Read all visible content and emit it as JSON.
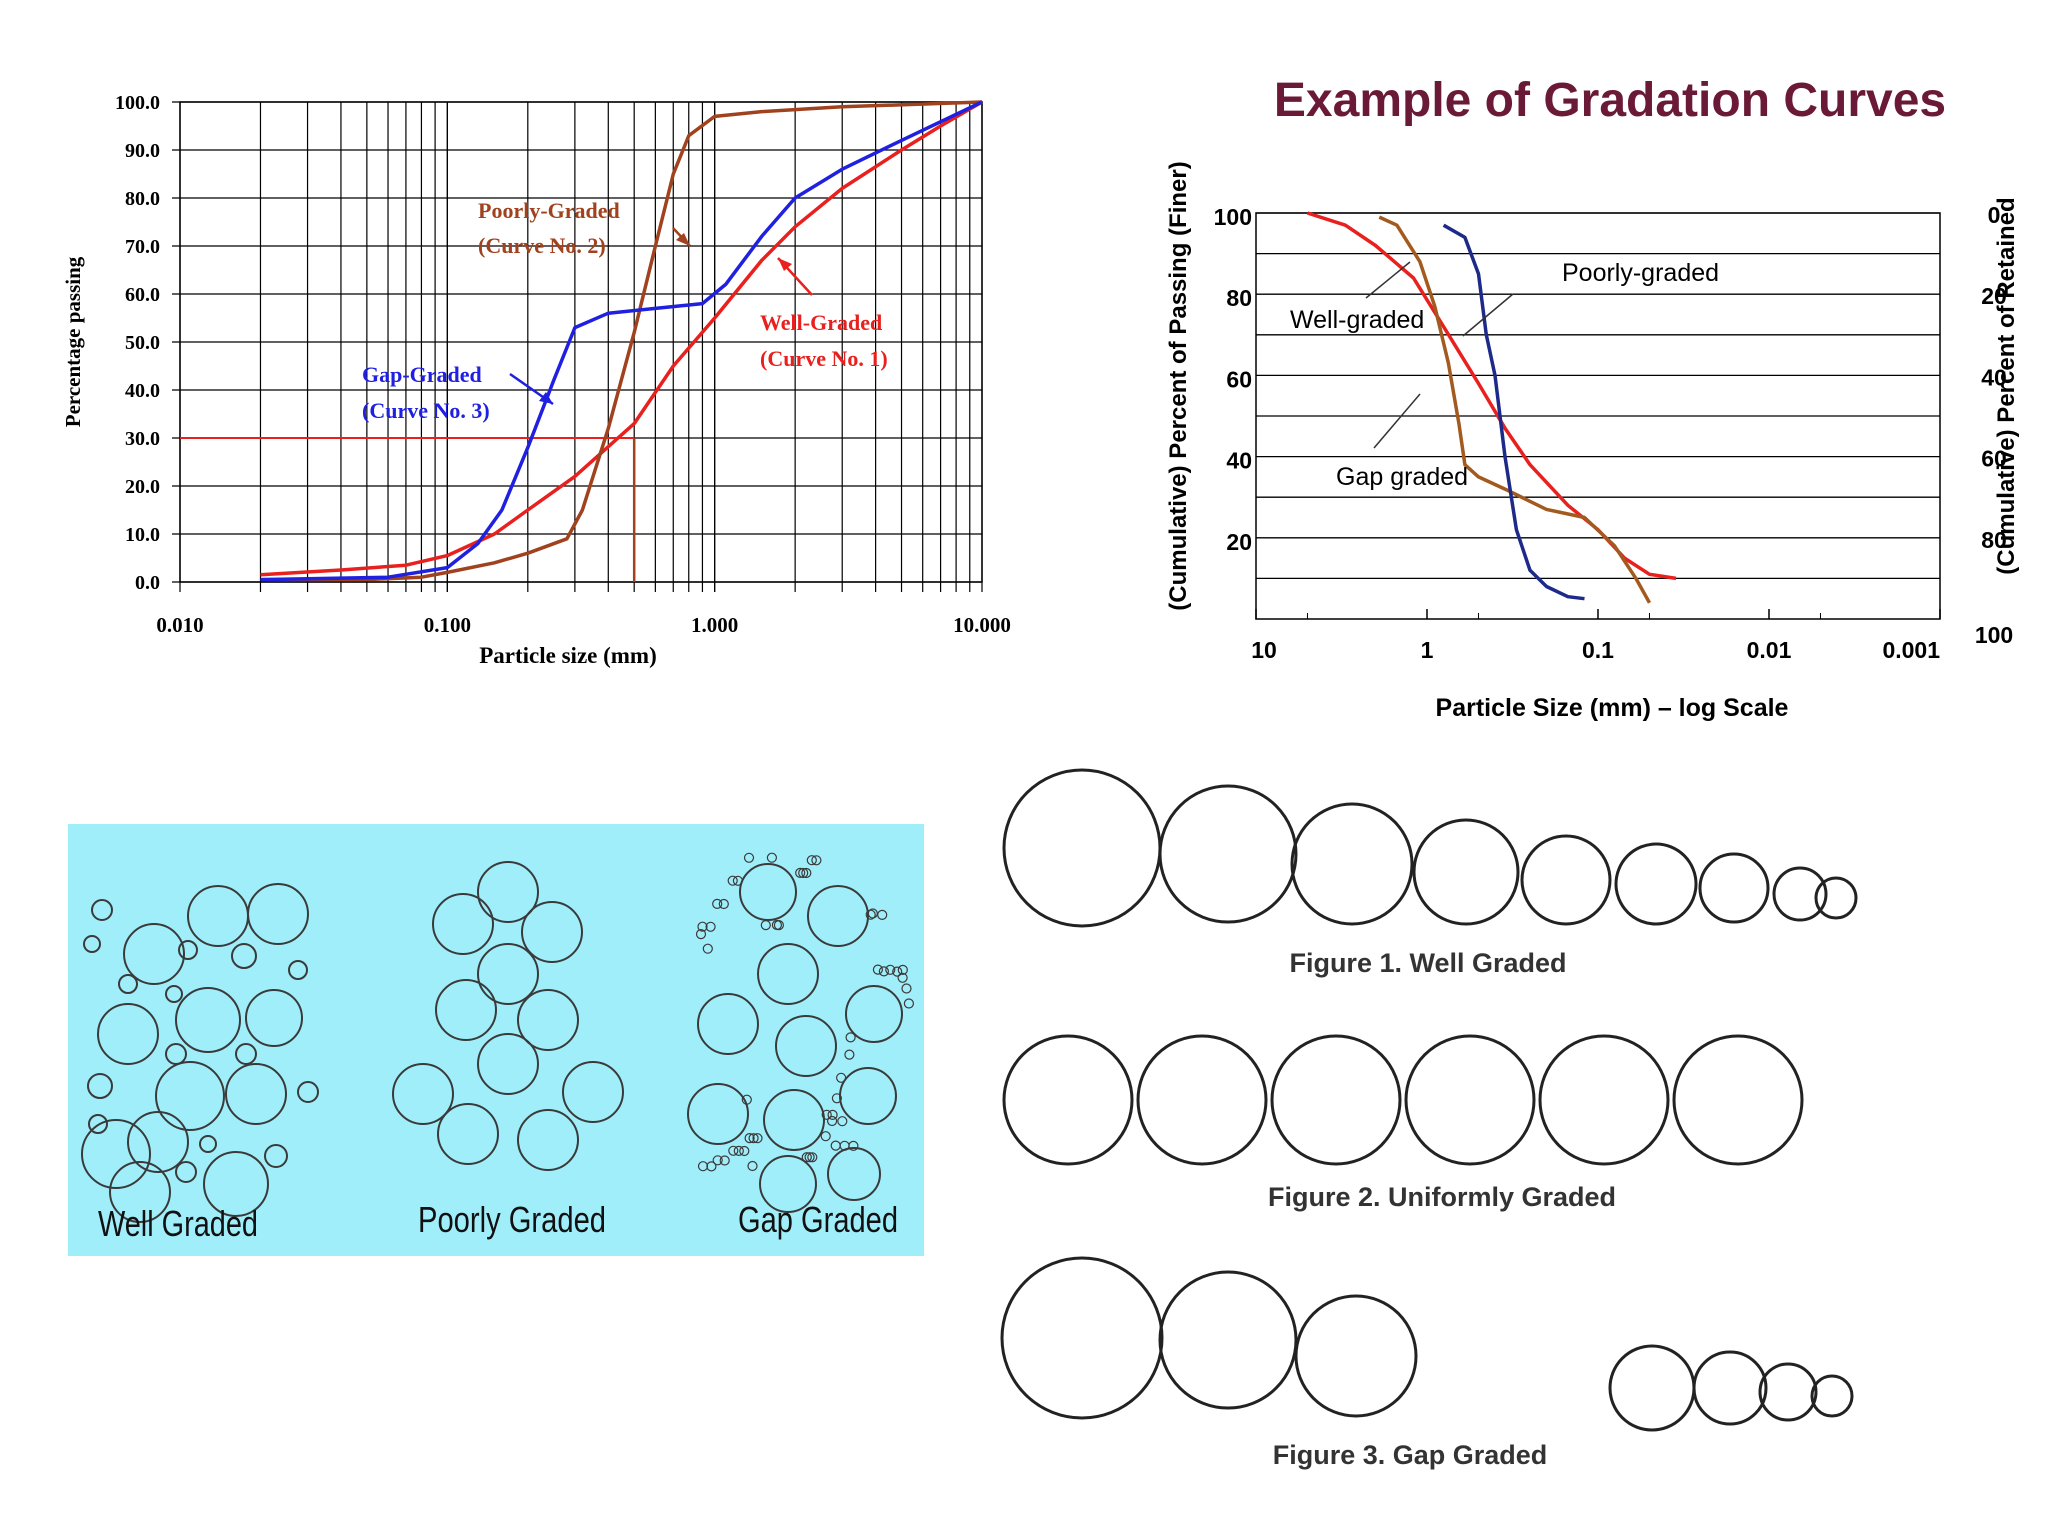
{
  "chart_data": [
    {
      "type": "line",
      "xscale": "log",
      "xlim": [
        0.01,
        10
      ],
      "ylim": [
        0,
        100
      ],
      "xlabel": "Particle size (mm)",
      "ylabel": "Percentage passing",
      "x_ticks": [
        "0.010",
        "0.100",
        "1.000",
        "10.000"
      ],
      "y_ticks": [
        "0.0",
        "10.0",
        "20.0",
        "30.0",
        "40.0",
        "50.0",
        "60.0",
        "70.0",
        "80.0",
        "90.0",
        "100.0"
      ],
      "grid": true,
      "series": [
        {
          "color": "#e8201e",
          "points": [
            [
              0.02,
              1.5
            ],
            [
              0.04,
              2.5
            ],
            [
              0.07,
              3.5
            ],
            [
              0.1,
              5.5
            ],
            [
              0.15,
              10
            ],
            [
              0.2,
              15
            ],
            [
              0.3,
              22
            ],
            [
              0.5,
              33
            ],
            [
              0.7,
              45
            ],
            [
              1.0,
              55
            ],
            [
              1.5,
              67
            ],
            [
              2.0,
              74
            ],
            [
              3.0,
              82
            ],
            [
              5.0,
              90
            ],
            [
              7.0,
              95
            ],
            [
              10.0,
              100
            ]
          ]
        },
        {
          "color": "#a0421e",
          "points": [
            [
              0.02,
              0.5
            ],
            [
              0.05,
              0.5
            ],
            [
              0.08,
              1
            ],
            [
              0.1,
              2
            ],
            [
              0.15,
              4
            ],
            [
              0.2,
              6
            ],
            [
              0.28,
              9
            ],
            [
              0.32,
              15
            ],
            [
              0.4,
              32
            ],
            [
              0.5,
              52
            ],
            [
              0.6,
              70
            ],
            [
              0.7,
              85
            ],
            [
              0.8,
              93
            ],
            [
              1.0,
              97
            ],
            [
              1.5,
              98
            ],
            [
              3.0,
              99
            ],
            [
              10.0,
              100
            ]
          ]
        },
        {
          "color": "#2020e0",
          "points": [
            [
              0.02,
              0.5
            ],
            [
              0.06,
              1
            ],
            [
              0.1,
              3
            ],
            [
              0.13,
              8
            ],
            [
              0.16,
              15
            ],
            [
              0.2,
              28
            ],
            [
              0.25,
              42
            ],
            [
              0.3,
              53
            ],
            [
              0.4,
              56
            ],
            [
              0.6,
              57
            ],
            [
              0.9,
              58
            ],
            [
              1.1,
              62
            ],
            [
              1.5,
              72
            ],
            [
              2.0,
              80
            ],
            [
              3.0,
              86
            ],
            [
              5.0,
              92
            ],
            [
              10.0,
              100
            ]
          ]
        }
      ],
      "reference_line": {
        "y": 30,
        "x": 0.5,
        "color": "#e8201e"
      },
      "annotations": [
        {
          "line1": "Poorly-Graded",
          "line2": "(Curve No. 2)",
          "color": "#a0421e"
        },
        {
          "line1": "Well-Graded",
          "line2": "(Curve No. 1)",
          "color": "#e8201e"
        },
        {
          "line1": "Gap-Graded",
          "line2": "(Curve No. 3)",
          "color": "#2020e0"
        }
      ]
    },
    {
      "type": "line",
      "title": "Example of Gradation Curves",
      "title_color": "#6a1a36",
      "xscale": "log",
      "x_reversed": true,
      "xlim": [
        10,
        0.001
      ],
      "ylim": [
        0,
        100
      ],
      "xlabel": "Particle Size (mm) – log Scale",
      "ylabel": "(Cumulative) Percent of Passing (Finer)",
      "ylabel_right": "(Cumulative) Percent of Retained",
      "x_ticks": [
        "10",
        "1",
        "0.1",
        "0.01",
        "0.001"
      ],
      "y_ticks": [
        "20",
        "40",
        "60",
        "80",
        "100"
      ],
      "y_ticks_right": [
        "100",
        "80",
        "60",
        "40",
        "20",
        "0"
      ],
      "series": [
        {
          "color": "#e8201e",
          "points": [
            [
              5.0,
              100
            ],
            [
              3.0,
              97
            ],
            [
              2.0,
              92
            ],
            [
              1.2,
              84
            ],
            [
              0.8,
              72
            ],
            [
              0.5,
              58
            ],
            [
              0.35,
              47
            ],
            [
              0.25,
              38
            ],
            [
              0.15,
              28
            ],
            [
              0.1,
              22
            ],
            [
              0.07,
              15
            ],
            [
              0.05,
              11
            ],
            [
              0.035,
              10
            ]
          ]
        },
        {
          "color": "#a35a1e",
          "points": [
            [
              1.9,
              99
            ],
            [
              1.5,
              97
            ],
            [
              1.1,
              88
            ],
            [
              0.9,
              77
            ],
            [
              0.75,
              63
            ],
            [
              0.65,
              48
            ],
            [
              0.6,
              38
            ],
            [
              0.5,
              35
            ],
            [
              0.35,
              32
            ],
            [
              0.2,
              27
            ],
            [
              0.12,
              25
            ],
            [
              0.08,
              18
            ],
            [
              0.06,
              10
            ],
            [
              0.05,
              4
            ]
          ]
        },
        {
          "color": "#1e2a8a",
          "points": [
            [
              0.8,
              97
            ],
            [
              0.6,
              94
            ],
            [
              0.5,
              85
            ],
            [
              0.45,
              70
            ],
            [
              0.4,
              60
            ],
            [
              0.35,
              40
            ],
            [
              0.3,
              22
            ],
            [
              0.25,
              12
            ],
            [
              0.2,
              8
            ],
            [
              0.15,
              5.5
            ],
            [
              0.12,
              5
            ]
          ]
        }
      ],
      "annotations": [
        {
          "text": "Well-graded"
        },
        {
          "text": "Poorly-graded"
        },
        {
          "text": "Gap graded"
        }
      ]
    }
  ],
  "illustration": {
    "background": "#a0eefa",
    "labels": [
      "Well Graded",
      "Poorly Graded",
      "Gap Graded"
    ]
  },
  "figures": {
    "captions": [
      "Figure 1. Well Graded",
      "Figure 2. Uniformly Graded",
      "Figure 3. Gap Graded"
    ]
  }
}
